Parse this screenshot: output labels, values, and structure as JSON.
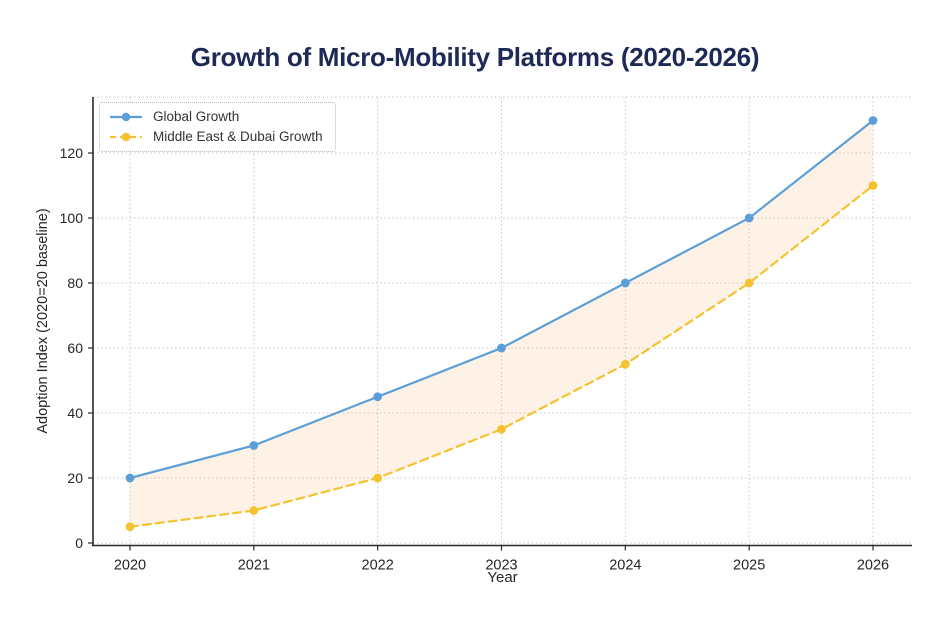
{
  "chart_data": {
    "type": "line",
    "title": "Growth of Micro-Mobility Platforms (2020-2026)",
    "title_color": "#1e2a56",
    "xlabel": "Year",
    "ylabel": "Adoption Index (2020=20 baseline)",
    "x": [
      2020,
      2021,
      2022,
      2023,
      2024,
      2025,
      2026
    ],
    "yticks": [
      0,
      20,
      40,
      60,
      80,
      100,
      120
    ],
    "ylim": [
      0,
      138
    ],
    "grid": true,
    "grid_style": "dotted",
    "grid_color": "#c9c9c9",
    "axis_color": "#2a2a2a",
    "legend_position": "upper left",
    "series": [
      {
        "name": "Global Growth",
        "values": [
          20,
          30,
          45,
          60,
          80,
          100,
          130
        ],
        "color": "#5b9fd8",
        "line_style": "solid",
        "marker": "circle"
      },
      {
        "name": "Middle East & Dubai Growth",
        "values": [
          5,
          10,
          20,
          35,
          55,
          80,
          110
        ],
        "color": "#f5c331",
        "line_style": "dashed",
        "marker": "circle"
      }
    ],
    "fill_between": {
      "between": [
        "Global Growth",
        "Middle East & Dubai Growth"
      ],
      "color": "#f7a95d",
      "opacity": 0.16
    }
  }
}
